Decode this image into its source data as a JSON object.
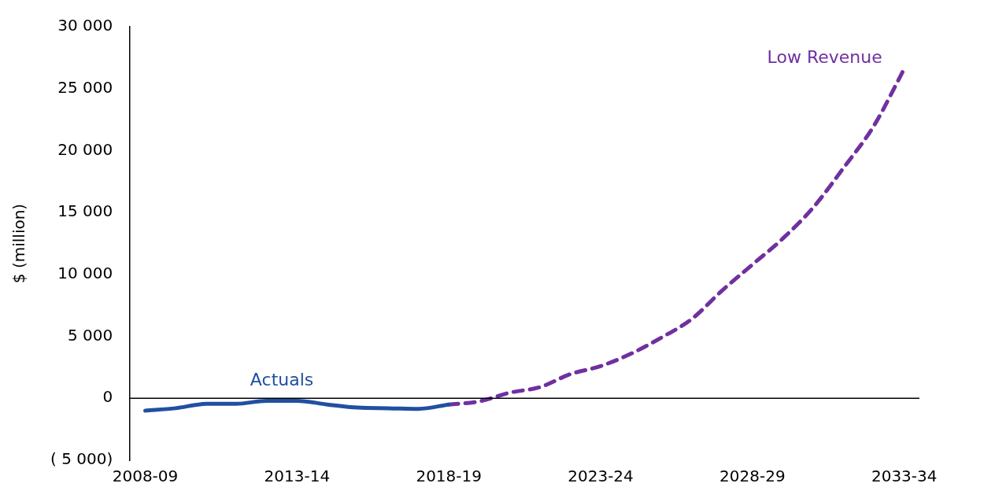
{
  "chart_data": {
    "type": "line",
    "ylabel": "$ (million)",
    "categories": [
      "2008-09",
      null,
      null,
      null,
      null,
      "2013-14",
      null,
      null,
      null,
      null,
      "2018-19",
      null,
      null,
      null,
      null,
      "2023-24",
      null,
      null,
      null,
      null,
      "2028-29",
      null,
      null,
      null,
      null,
      "2033-34"
    ],
    "series": [
      {
        "name": "Actuals",
        "color": "#2150a0",
        "line_style": "solid",
        "values": [
          -1000,
          -800,
          -450,
          -450,
          -200,
          -200,
          -500,
          -750,
          -800,
          -850,
          -500,
          null,
          null,
          null,
          null,
          null,
          null,
          null,
          null,
          null,
          null,
          null,
          null,
          null,
          null,
          null
        ]
      },
      {
        "name": "Low Revenue",
        "color": "#7030a0",
        "line_style": "dashed",
        "values": [
          null,
          null,
          null,
          null,
          null,
          null,
          null,
          null,
          null,
          null,
          -500,
          -250,
          450,
          900,
          1950,
          2600,
          3600,
          4900,
          6400,
          8700,
          10800,
          12900,
          15400,
          18600,
          22000,
          26600
        ]
      }
    ],
    "ylim": [
      -5000,
      30000
    ],
    "yticks": [
      {
        "value": -5000,
        "label": "( 5 000)"
      },
      0,
      {
        "value": 5000,
        "label": "5 000"
      },
      {
        "value": 10000,
        "label": "10 000"
      },
      {
        "value": 15000,
        "label": "15 000"
      },
      {
        "value": 20000,
        "label": "20 000"
      },
      {
        "value": 25000,
        "label": "25 000"
      },
      {
        "value": 30000,
        "label": "30 000"
      }
    ],
    "ref_lines": [
      {
        "axis": "y",
        "value": 0,
        "color": "#000000"
      }
    ],
    "grid": false,
    "legend": false,
    "marker": "none"
  }
}
